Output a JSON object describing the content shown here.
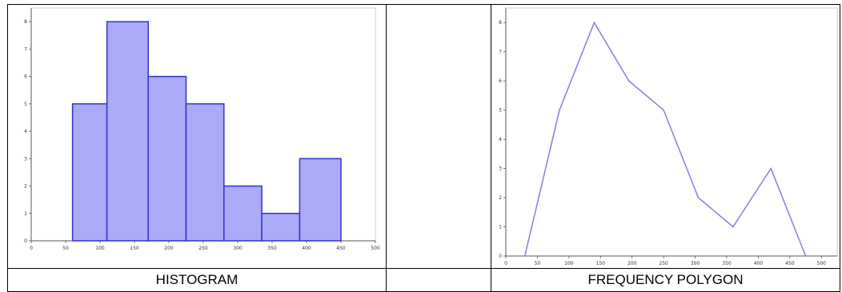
{
  "captions": {
    "histogram": "HISTOGRAM",
    "polygon": "FREQUENCY POLYGON"
  },
  "chart_data": [
    {
      "type": "bar",
      "categories": [
        "60-110",
        "110-170",
        "170-225",
        "225-280",
        "280-335",
        "335-390",
        "390-450"
      ],
      "bins": [
        [
          60,
          110
        ],
        [
          110,
          170
        ],
        [
          170,
          225
        ],
        [
          225,
          280
        ],
        [
          280,
          335
        ],
        [
          335,
          390
        ],
        [
          390,
          450
        ]
      ],
      "values": [
        5,
        8,
        6,
        5,
        2,
        1,
        3
      ],
      "title": "",
      "xlabel": "",
      "ylabel": "",
      "xlim": [
        0,
        500
      ],
      "ylim": [
        0,
        8.5
      ],
      "x_ticks": [
        "0",
        "50",
        "100",
        "150",
        "200",
        "250",
        "300",
        "350",
        "400",
        "450",
        "500"
      ],
      "y_ticks": [
        "0",
        "1",
        "2",
        "3",
        "4",
        "5",
        "6",
        "7",
        "8"
      ],
      "grid": false,
      "bar_color": "#aaaaf8",
      "edge_color": "#3333cc"
    },
    {
      "type": "line",
      "x": [
        30,
        85,
        140,
        195,
        250,
        305,
        360,
        420,
        475
      ],
      "y": [
        0,
        5,
        8,
        6,
        5,
        2,
        1,
        3,
        0
      ],
      "title": "",
      "xlabel": "",
      "ylabel": "",
      "xlim": [
        0,
        525
      ],
      "ylim": [
        0,
        8.5
      ],
      "x_ticks": [
        "0",
        "50",
        "100",
        "150",
        "200",
        "250",
        "300",
        "350",
        "400",
        "450",
        "500"
      ],
      "y_ticks": [
        "0",
        "1",
        "2",
        "3",
        "4",
        "5",
        "6",
        "7",
        "8"
      ],
      "grid": false,
      "line_color": "#8080e0"
    }
  ]
}
